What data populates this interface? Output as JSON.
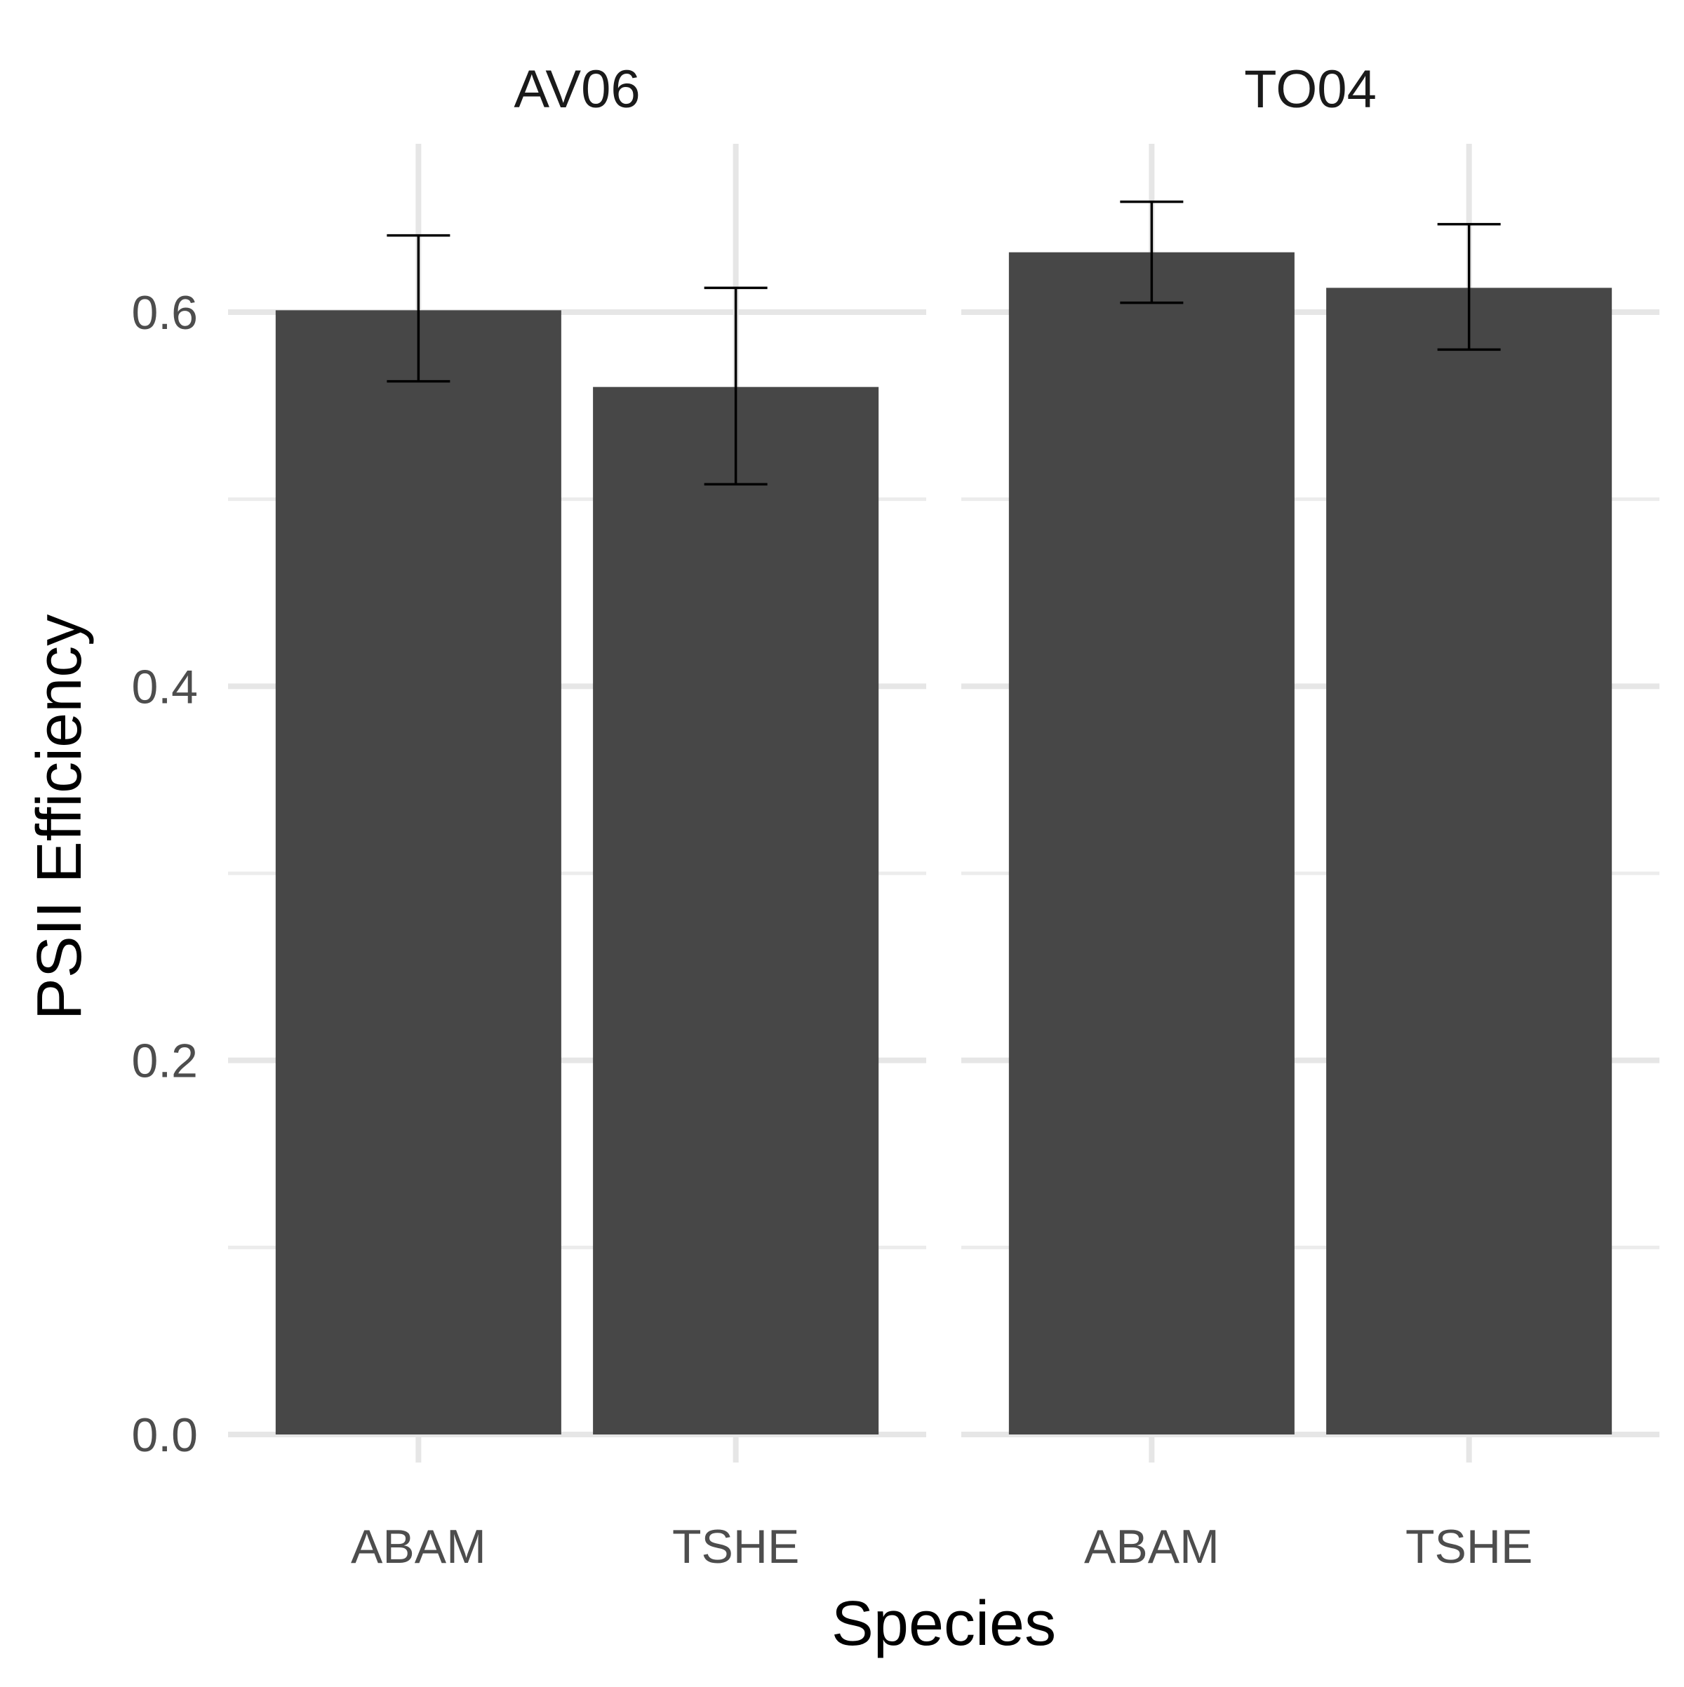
{
  "chart_data": {
    "type": "bar",
    "xlabel": "Species",
    "ylabel": "PSII Efficiency",
    "ylim": [
      -0.015,
      0.69
    ],
    "y_ticks": [
      0.0,
      0.2,
      0.4,
      0.6
    ],
    "y_tick_labels": [
      "0.0",
      "0.2",
      "0.4",
      "0.6"
    ],
    "y_minor_ticks": [
      0.1,
      0.3,
      0.5
    ],
    "grid": true,
    "legend": "none",
    "bar_color": "#474747",
    "facets": [
      {
        "label": "AV06",
        "categories": [
          "ABAM",
          "TSHE"
        ],
        "values": [
          0.601,
          0.56
        ],
        "error_low": [
          0.563,
          0.508
        ],
        "error_high": [
          0.641,
          0.613
        ]
      },
      {
        "label": "TO04",
        "categories": [
          "ABAM",
          "TSHE"
        ],
        "values": [
          0.632,
          0.613
        ],
        "error_low": [
          0.605,
          0.58
        ],
        "error_high": [
          0.659,
          0.647
        ]
      }
    ]
  }
}
